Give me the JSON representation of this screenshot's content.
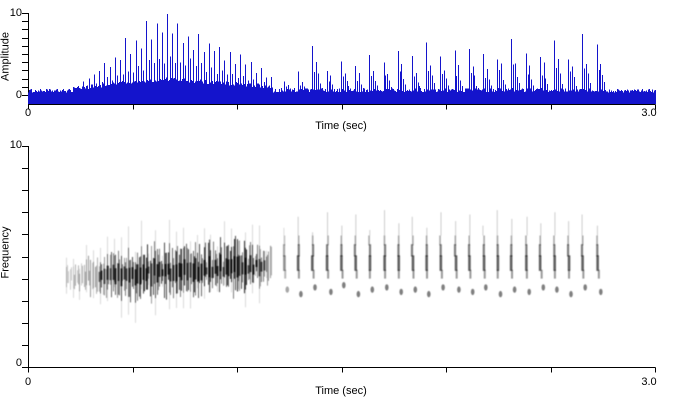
{
  "figure": {
    "background": "#ffffff",
    "axis_color": "#000000",
    "waveform_color": "#1414CC",
    "spectrogram_color": "#000000"
  },
  "top_chart": {
    "ylabel": "Amplitude",
    "xlabel": "Time (sec)",
    "y_max_label": "10",
    "y_min_label": "0",
    "x_min_label": "0",
    "x_max_label": "3.0"
  },
  "bottom_chart": {
    "ylabel": "Frequency",
    "xlabel": "Time (sec)",
    "y_max_label": "10",
    "y_min_label": "0",
    "x_min_label": "0",
    "x_max_label": "3.0"
  },
  "chart_data": [
    {
      "type": "area",
      "name": "waveform",
      "title": "",
      "xlabel": "Time (sec)",
      "ylabel": "Amplitude",
      "xlim": [
        0,
        3.0
      ],
      "ylim": [
        0,
        10
      ],
      "xticks": [
        0,
        0.5,
        1.0,
        1.5,
        2.0,
        2.5,
        3.0
      ],
      "xtick_labels": [
        "0",
        "",
        "",
        "",
        "",
        "",
        "3.0"
      ],
      "yticks": [
        0,
        1,
        2,
        3,
        4,
        5,
        6,
        7,
        8,
        9,
        10
      ],
      "ytick_labels": [
        "0",
        "",
        "",
        "",
        "",
        "",
        "",
        "",
        "",
        "",
        "10"
      ],
      "grid": false,
      "series_color": "#1414CC",
      "noise_floor_amplitude": 0.7,
      "trill": {
        "t_start": 0.215,
        "t_end": 1.17,
        "pulse_interval": 0.0125,
        "envelope": [
          [
            0.215,
            0.8
          ],
          [
            0.3,
            2.5
          ],
          [
            0.38,
            4.2
          ],
          [
            0.46,
            6.0
          ],
          [
            0.54,
            7.8
          ],
          [
            0.62,
            9.2
          ],
          [
            0.66,
            9.7
          ],
          [
            0.72,
            8.8
          ],
          [
            0.8,
            7.6
          ],
          [
            0.88,
            6.4
          ],
          [
            0.96,
            5.4
          ],
          [
            1.04,
            4.4
          ],
          [
            1.1,
            3.4
          ],
          [
            1.17,
            2.4
          ]
        ]
      },
      "pulse_train": {
        "interval": 0.068,
        "pulses": [
          [
            1.225,
            1.8
          ],
          [
            1.293,
            2.6
          ],
          [
            1.361,
            6.2
          ],
          [
            1.429,
            3.2
          ],
          [
            1.497,
            4.0
          ],
          [
            1.565,
            3.5
          ],
          [
            1.633,
            4.6
          ],
          [
            1.701,
            4.1
          ],
          [
            1.769,
            5.2
          ],
          [
            1.837,
            4.4
          ],
          [
            1.905,
            5.6
          ],
          [
            1.973,
            4.7
          ],
          [
            2.041,
            5.0
          ],
          [
            2.109,
            5.4
          ],
          [
            2.177,
            4.6
          ],
          [
            2.245,
            5.1
          ],
          [
            2.313,
            6.3
          ],
          [
            2.381,
            4.8
          ],
          [
            2.449,
            5.3
          ],
          [
            2.517,
            5.9
          ],
          [
            2.585,
            5.0
          ],
          [
            2.653,
            6.5
          ],
          [
            2.721,
            6.2
          ]
        ]
      },
      "tail_noise": {
        "t_start": 2.75,
        "t_end": 3.0
      }
    },
    {
      "type": "heatmap",
      "name": "spectrogram",
      "title": "",
      "xlabel": "Time (sec)",
      "ylabel": "Frequency",
      "xlim": [
        0,
        3.0
      ],
      "ylim": [
        0,
        10
      ],
      "xticks": [
        0,
        0.5,
        1.0,
        1.5,
        2.0,
        2.5,
        3.0
      ],
      "xtick_labels": [
        "0",
        "",
        "",
        "",
        "",
        "",
        "3.0"
      ],
      "yticks": [
        0,
        1,
        2,
        3,
        4,
        5,
        6,
        7,
        8,
        9,
        10
      ],
      "ytick_labels": [
        "0",
        "",
        "",
        "",
        "",
        "",
        "",
        "",
        "",
        "",
        "10"
      ],
      "grid": false,
      "trill_band": {
        "t_start": 0.18,
        "t_end": 1.17,
        "freq_center_start": 4.05,
        "freq_center_end": 4.6,
        "freq_halfwidth_mean": 0.8
      },
      "pulses": {
        "times": [
          1.225,
          1.293,
          1.361,
          1.429,
          1.497,
          1.565,
          1.633,
          1.701,
          1.769,
          1.837,
          1.905,
          1.973,
          2.041,
          2.109,
          2.177,
          2.245,
          2.313,
          2.381,
          2.449,
          2.517,
          2.585,
          2.653,
          2.721
        ],
        "main_band": [
          4.3,
          5.95
        ],
        "core_band": [
          4.4,
          5.3
        ],
        "tail_freqs": [
          6.3,
          6.8,
          6.1,
          7.0,
          6.4,
          6.9,
          6.2,
          7.1,
          6.5,
          6.8,
          6.3,
          7.0,
          6.6,
          6.9,
          6.4,
          7.1,
          6.7,
          6.8,
          6.5,
          7.0,
          6.6,
          6.9,
          6.4
        ],
        "dot_freqs": [
          3.5,
          3.3,
          3.6,
          3.4,
          3.7,
          3.3,
          3.5,
          3.6,
          3.4,
          3.5,
          3.3,
          3.6,
          3.5,
          3.4,
          3.6,
          3.3,
          3.5,
          3.4,
          3.6,
          3.5,
          3.3,
          3.6,
          3.4
        ]
      }
    }
  ]
}
